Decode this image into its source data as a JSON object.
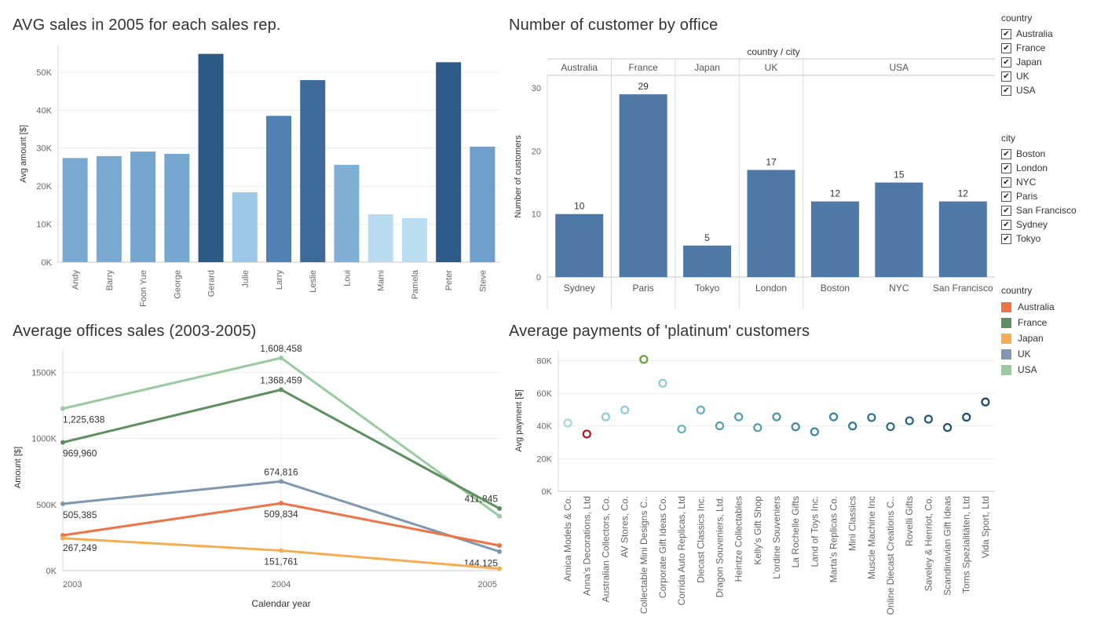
{
  "chart_data": [
    {
      "type": "bar",
      "title": "AVG sales in 2005 for each sales rep.",
      "ylabel": "Avg amount [$]",
      "ylim": [
        0,
        57000
      ],
      "yticks": [
        0,
        10000,
        20000,
        30000,
        40000,
        50000
      ],
      "ytick_labels": [
        "0K",
        "10K",
        "20K",
        "30K",
        "40K",
        "50K"
      ],
      "categories": [
        "Andy",
        "Barry",
        "Foon Yue",
        "George",
        "Gerard",
        "Julie",
        "Larry",
        "Leslie",
        "Loui",
        "Mami",
        "Pamela",
        "Peter",
        "Steve"
      ],
      "values": [
        27400,
        27900,
        29100,
        28500,
        54800,
        18400,
        38500,
        47900,
        25600,
        12600,
        11600,
        52600,
        30400
      ],
      "colors": [
        "#79a9d1",
        "#79a9d1",
        "#74a6d0",
        "#75a7d0",
        "#2b5a87",
        "#9dc8e6",
        "#5181b2",
        "#3c6b99",
        "#80b0d6",
        "#b7dcf0",
        "#b9ddf1",
        "#2d5c8a",
        "#6f9fcb"
      ],
      "grid": true
    },
    {
      "type": "bar",
      "title": "Number of customer by office",
      "header": "country / city",
      "ylabel": "Number of customers",
      "ylim": [
        0,
        33
      ],
      "yticks": [
        0,
        10,
        20,
        30
      ],
      "groups": [
        {
          "country": "Australia",
          "cities": [
            "Sydney"
          ],
          "values": [
            10
          ]
        },
        {
          "country": "France",
          "cities": [
            "Paris"
          ],
          "values": [
            29
          ]
        },
        {
          "country": "Japan",
          "cities": [
            "Tokyo"
          ],
          "values": [
            5
          ]
        },
        {
          "country": "UK",
          "cities": [
            "London"
          ],
          "values": [
            17
          ]
        },
        {
          "country": "USA",
          "cities": [
            "Boston",
            "NYC",
            "San Francisco"
          ],
          "values": [
            12,
            15,
            12
          ]
        }
      ],
      "bar_color": "#4e79a7"
    },
    {
      "type": "line",
      "title": "Average offices sales (2003-2005)",
      "xlabel": "Calendar year",
      "ylabel": "Amount [$]",
      "x": [
        "2003",
        "2004",
        "2005"
      ],
      "ylim": [
        0,
        1680000
      ],
      "yticks": [
        0,
        500000,
        1000000,
        1500000
      ],
      "ytick_labels": [
        "0K",
        "500K",
        "1000K",
        "1500K"
      ],
      "series": [
        {
          "name": "USA",
          "color": "#98cc9f",
          "values": [
            1225638,
            1608458,
            411845
          ],
          "labels": [
            "1,225,638",
            "1,608,458",
            "411,845"
          ]
        },
        {
          "name": "France",
          "color": "#5e8f5f",
          "values": [
            969960,
            1368459,
            470000
          ],
          "labels": [
            "969,960",
            "1,368,459",
            ""
          ]
        },
        {
          "name": "UK",
          "color": "#7f97b1",
          "values": [
            505385,
            674816,
            144125
          ],
          "labels": [
            "505,385",
            "674,816",
            "144,125"
          ]
        },
        {
          "name": "Australia",
          "color": "#ee7448",
          "values": [
            267249,
            509834,
            190000
          ],
          "labels": [
            "267,249",
            "509,834",
            ""
          ]
        },
        {
          "name": "Japan",
          "color": "#f6ad52",
          "values": [
            245000,
            151761,
            15000
          ],
          "labels": [
            "",
            "151,761",
            ""
          ]
        }
      ],
      "grid": true
    },
    {
      "type": "scatter",
      "title": "Average payments of 'platinum' customers",
      "ylabel": "Avg payment [$]",
      "ylim": [
        0,
        86000
      ],
      "yticks": [
        0,
        20000,
        40000,
        60000,
        80000
      ],
      "ytick_labels": [
        "0K",
        "20K",
        "40K",
        "60K",
        "80K"
      ],
      "categories": [
        "Amica Models & Co.",
        "Anna's Decorations, Ltd",
        "Australian Collectors, Co.",
        "AV Stores, Co.",
        "Collectable Mini Designs C..",
        "Corporate Gift Ideas Co.",
        "Corrida Auto Replicas, Ltd",
        "Diecast Classics Inc.",
        "Dragon Souveniers, Ltd.",
        "Heintze Collectables",
        "Kelly's Gift Shop",
        "L'ordine Souveniers",
        "La Rochelle Gifts",
        "Land of Toys Inc.",
        "Marta's Replicas Co.",
        "Mini Classics",
        "Muscle Machine Inc",
        "Online Diecast Creations C..",
        "Rovelli Gifts",
        "Saveley & Henriot, Co.",
        "Scandinavian Gift Ideas",
        "Toms Spezialitäten, Ltd",
        "Vida Sport, Ltd"
      ],
      "values": [
        41800,
        35100,
        45600,
        49800,
        80800,
        66200,
        38100,
        49800,
        40100,
        45600,
        39000,
        45600,
        39500,
        36500,
        45600,
        40000,
        45200,
        39600,
        43200,
        44200,
        39100,
        45400,
        54700
      ],
      "colors": [
        "#a6d5dc",
        "#b2101c",
        "#8fcad3",
        "#8fcad3",
        "#5ea82b",
        "#8fcad3",
        "#62b1bf",
        "#62b1bf",
        "#4f9fb3",
        "#4f9fb3",
        "#4f9fb3",
        "#4394ab",
        "#3c88a3",
        "#3c88a3",
        "#35809b",
        "#307896",
        "#2c7090",
        "#27698a",
        "#236185",
        "#1f5a80",
        "#1c537a",
        "#1a4d75",
        "#17476f"
      ],
      "grid": true
    }
  ],
  "filters": {
    "country": {
      "title": "country",
      "items": [
        "Australia",
        "France",
        "Japan",
        "UK",
        "USA"
      ]
    },
    "city": {
      "title": "city",
      "items": [
        "Boston",
        "London",
        "NYC",
        "Paris",
        "San Francisco",
        "Sydney",
        "Tokyo"
      ]
    }
  },
  "color_legend": {
    "title": "country",
    "items": [
      {
        "label": "Australia",
        "color": "#ee7448"
      },
      {
        "label": "France",
        "color": "#5e8f5f"
      },
      {
        "label": "Japan",
        "color": "#f6ad52"
      },
      {
        "label": "UK",
        "color": "#7f97b1"
      },
      {
        "label": "USA",
        "color": "#98cc9f"
      }
    ]
  },
  "checkmark": "✔"
}
